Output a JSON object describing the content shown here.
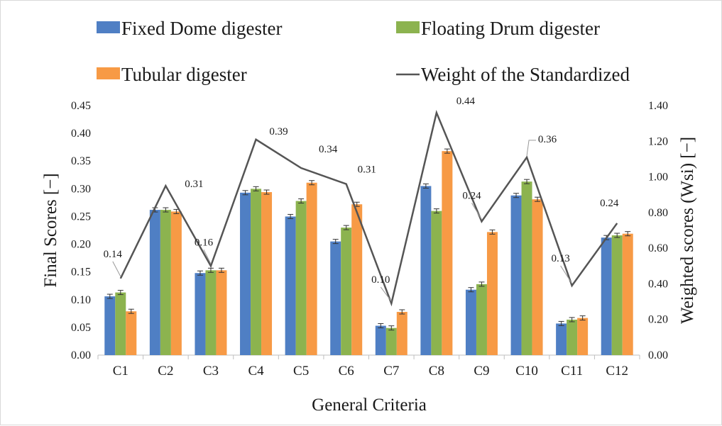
{
  "chart_data": {
    "type": "bar",
    "categories": [
      "C1",
      "C2",
      "C3",
      "C4",
      "C5",
      "C6",
      "C7",
      "C8",
      "C9",
      "C10",
      "C11",
      "C12"
    ],
    "series": [
      {
        "name": "Fixed Dome digester",
        "kind": "bar",
        "axis": "left",
        "color": "#4f7fc4",
        "values": [
          0.106,
          0.262,
          0.148,
          0.293,
          0.25,
          0.205,
          0.053,
          0.305,
          0.118,
          0.288,
          0.057,
          0.212
        ]
      },
      {
        "name": "Floating Drum digester",
        "kind": "bar",
        "axis": "left",
        "color": "#8cb34f",
        "values": [
          0.113,
          0.262,
          0.153,
          0.3,
          0.278,
          0.23,
          0.049,
          0.26,
          0.128,
          0.313,
          0.064,
          0.216
        ]
      },
      {
        "name": "Tubular digester",
        "kind": "bar",
        "axis": "left",
        "color": "#f79a45",
        "values": [
          0.079,
          0.259,
          0.153,
          0.294,
          0.311,
          0.272,
          0.078,
          0.368,
          0.222,
          0.281,
          0.067,
          0.219
        ]
      },
      {
        "name": "Weight of the Standardized",
        "kind": "line",
        "axis": "right",
        "color": "#555555",
        "values": [
          0.43,
          0.95,
          0.5,
          1.21,
          1.05,
          0.96,
          0.29,
          1.36,
          0.75,
          1.11,
          0.39,
          0.74
        ],
        "labels": [
          "0.14",
          "0.31",
          "0.16",
          "0.39",
          "0.34",
          "0.31",
          "0.10",
          "0.44",
          "0.24",
          "0.36",
          "0.13",
          "0.24"
        ]
      }
    ],
    "xlabel": "General Criteria",
    "ylabel": "Final Scores [−]",
    "y2label": "Weighted scores  (Wsi)  [−]",
    "ylim": [
      0,
      0.45
    ],
    "y2lim": [
      0,
      1.4
    ],
    "yticks": [
      "0.00",
      "0.05",
      "0.10",
      "0.15",
      "0.20",
      "0.25",
      "0.30",
      "0.35",
      "0.40",
      "0.45"
    ],
    "y2ticks": [
      "0.00",
      "0.20",
      "0.40",
      "0.60",
      "0.80",
      "1.00",
      "1.20",
      "1.40"
    ],
    "grid": false,
    "error_bars": true,
    "legend_position": "top"
  }
}
